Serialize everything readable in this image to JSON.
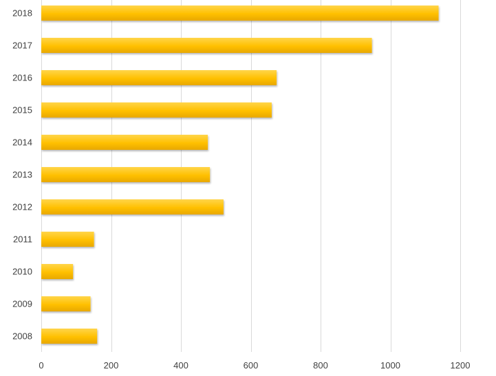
{
  "chart_data": {
    "type": "bar",
    "orientation": "horizontal",
    "title": "",
    "xlabel": "",
    "ylabel": "",
    "categories": [
      "2018",
      "2017",
      "2016",
      "2015",
      "2014",
      "2013",
      "2012",
      "2011",
      "2010",
      "2009",
      "2008"
    ],
    "values": [
      1138,
      947,
      674,
      660,
      477,
      483,
      522,
      151,
      91,
      141,
      160
    ],
    "xlim": [
      0,
      1200
    ],
    "x_ticks": [
      0,
      200,
      400,
      600,
      800,
      1000,
      1200
    ],
    "x_tick_labels": [
      "0",
      "200",
      "400",
      "600",
      "800",
      "1000",
      "1200"
    ],
    "grid": "vertical",
    "legend": "none",
    "bar_color": "#FFC000",
    "bar_color_light": "#FFD54A",
    "bar_color_dark": "#E8A800"
  }
}
